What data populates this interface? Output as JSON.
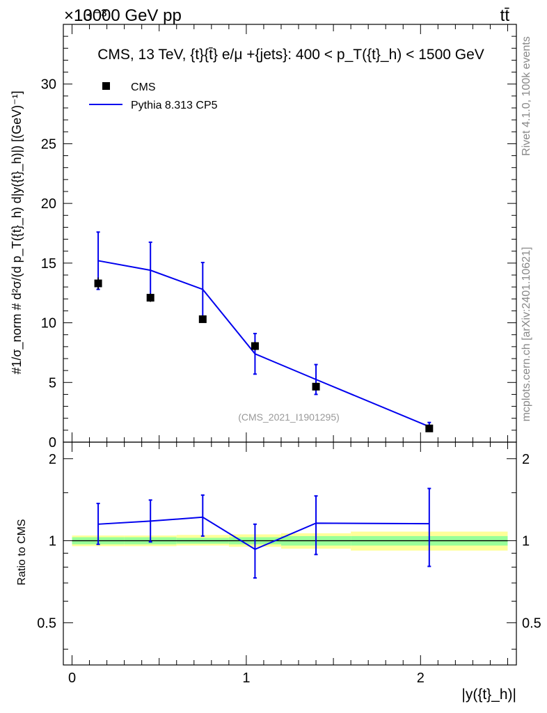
{
  "header": {
    "energy_label": "13000 GeV pp",
    "process_label": "tt̄",
    "exponent_label": "×10⁻³"
  },
  "side_labels": {
    "rivet": "Rivet 4.1.0,  100k events",
    "mcplots": "mcplots.cern.ch [arXiv:2401.10621]"
  },
  "watermark": "(CMS_2021_I1901295)",
  "chart_data": [
    {
      "type": "scatter",
      "panel": "main",
      "title": "CMS, 13 TeV, {t}{t̄} e/μ +{jets}: 400 <  p_T({t}_h) < 1500 GeV",
      "xlabel": "|y({t}_h)|",
      "ylabel": "#1/σ_norm # d²σ/(d p_T({t}_h) d|y({t}_h)|) [(GeV)⁻¹]",
      "xlim": [
        -0.05,
        2.55
      ],
      "ylim": [
        0,
        35
      ],
      "y_scale": "×10⁻³",
      "y_ticks": [
        0,
        5,
        10,
        15,
        20,
        25,
        30
      ],
      "y_tick_labels": [
        "0",
        "5",
        "10",
        "15",
        "20",
        "25",
        "30"
      ],
      "legend": {
        "position": "top-left",
        "entries": [
          "CMS",
          "Pythia 8.313 CP5"
        ]
      },
      "series": [
        {
          "name": "CMS",
          "style": "markers",
          "color": "#000000",
          "x": [
            0.15,
            0.45,
            0.75,
            1.05,
            1.4,
            2.05
          ],
          "y": [
            13.3,
            12.1,
            10.3,
            8.05,
            4.65,
            1.15
          ],
          "err": [
            0.5,
            0.35,
            0.3,
            0.35,
            0.25,
            0.1
          ]
        },
        {
          "name": "Pythia 8.313 CP5",
          "style": "line",
          "color": "#0000ee",
          "x": [
            0.15,
            0.45,
            0.75,
            1.05,
            1.4,
            2.05
          ],
          "y": [
            15.2,
            14.4,
            12.8,
            7.4,
            5.25,
            1.3
          ],
          "err": [
            2.4,
            2.35,
            2.25,
            1.7,
            1.25,
            0.35
          ]
        }
      ]
    },
    {
      "type": "line",
      "panel": "ratio",
      "xlabel": "|y({t}_h)|",
      "ylabel": "Ratio to CMS",
      "xlim": [
        -0.05,
        2.55
      ],
      "ylim": [
        0.35,
        2.3
      ],
      "x_ticks": [
        0,
        1,
        2
      ],
      "x_tick_labels": [
        "0",
        "1",
        "2"
      ],
      "y_ticks": [
        0.5,
        1,
        2
      ],
      "y_tick_labels": [
        "0.5",
        "1",
        "2"
      ],
      "bands": {
        "edges": [
          0,
          0.3,
          0.6,
          0.9,
          1.2,
          1.6,
          2.5
        ],
        "green": [
          [
            0.97,
            1.03
          ],
          [
            0.97,
            1.03
          ],
          [
            0.975,
            1.025
          ],
          [
            0.97,
            1.03
          ],
          [
            0.96,
            1.04
          ],
          [
            0.96,
            1.04
          ]
        ],
        "yellow": [
          [
            0.955,
            1.045
          ],
          [
            0.955,
            1.045
          ],
          [
            0.96,
            1.05
          ],
          [
            0.95,
            1.055
          ],
          [
            0.935,
            1.065
          ],
          [
            0.92,
            1.08
          ]
        ]
      },
      "series": [
        {
          "name": "Pythia 8.313 CP5",
          "color": "#0000ee",
          "x": [
            0.15,
            0.45,
            0.75,
            1.05,
            1.4,
            2.05
          ],
          "y": [
            1.15,
            1.18,
            1.22,
            0.93,
            1.16,
            1.155
          ],
          "err_low": [
            0.18,
            0.19,
            0.18,
            0.2,
            0.27,
            0.35
          ],
          "err_high": [
            0.22,
            0.23,
            0.25,
            0.22,
            0.3,
            0.4
          ]
        }
      ]
    }
  ]
}
